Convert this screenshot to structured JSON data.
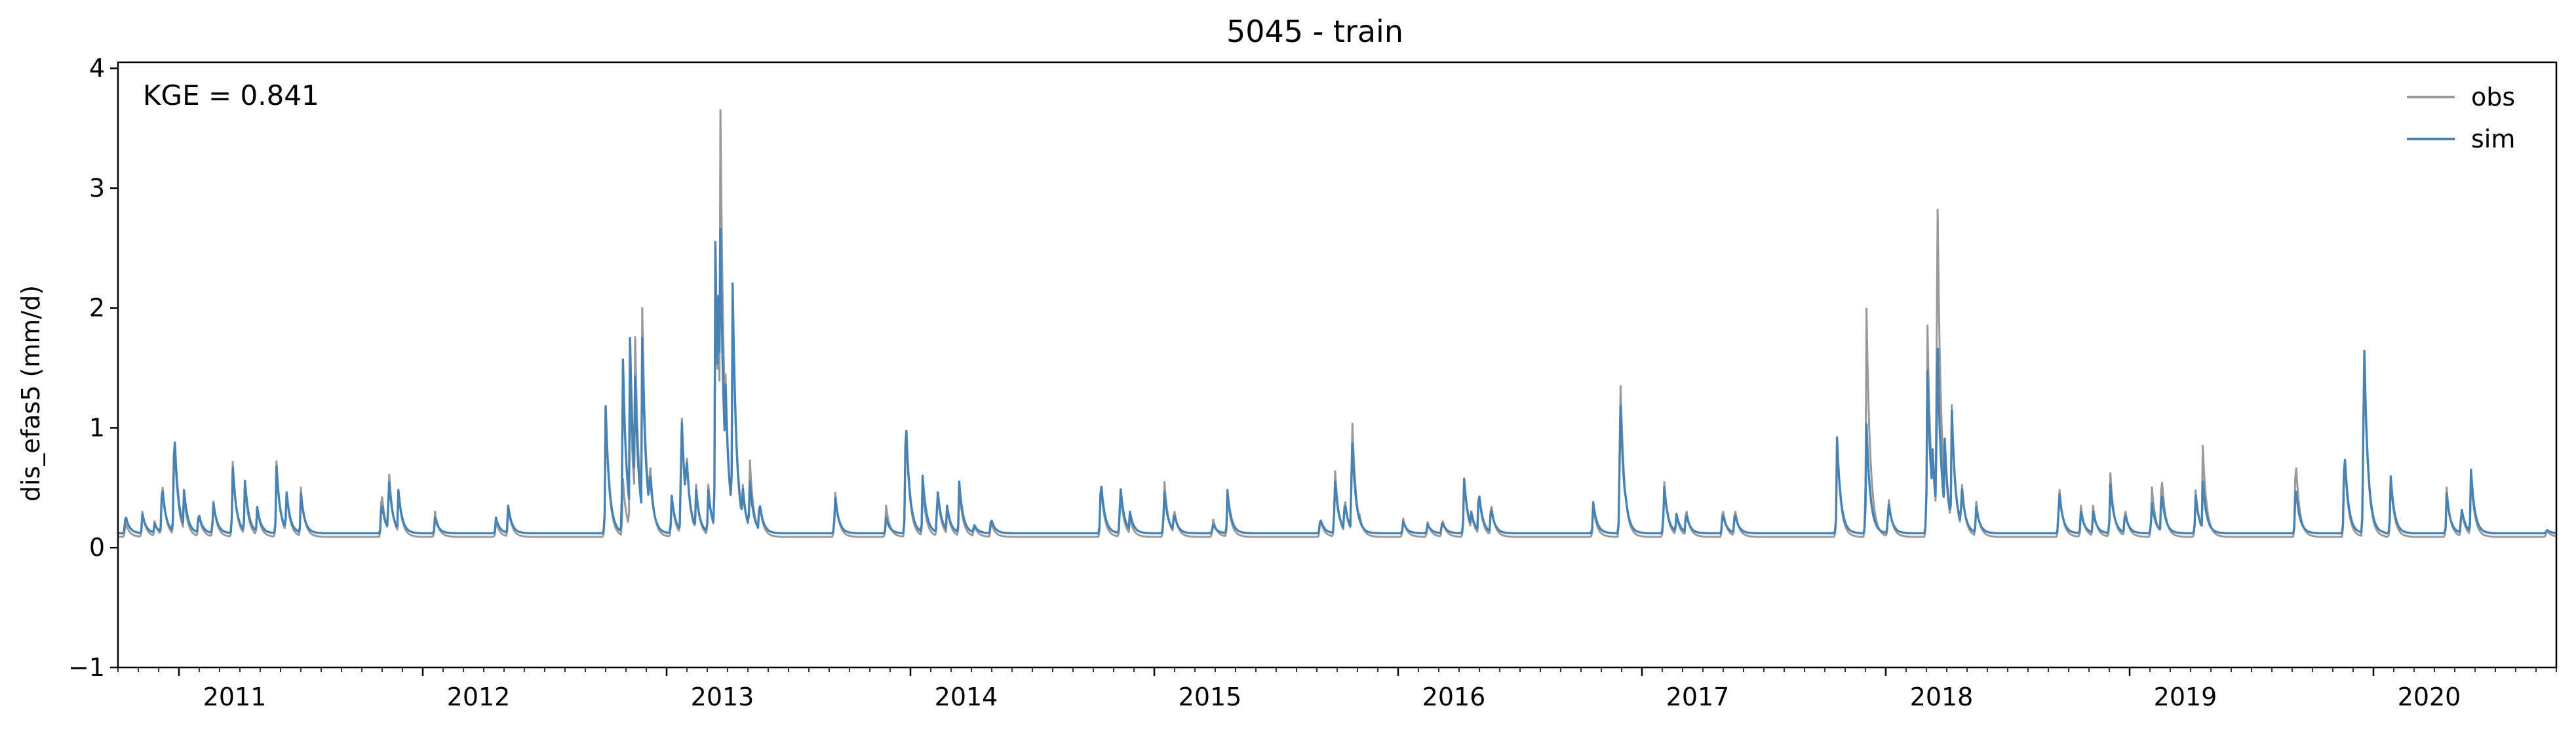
{
  "chart_data": {
    "type": "line",
    "title": "5045 - train",
    "xlabel": "",
    "ylabel": "dis_efas5 (mm/d)",
    "annotation": "KGE = 0.841",
    "legend_position": "top-right",
    "grid": false,
    "xlim": [
      2010.75,
      2020.75
    ],
    "ylim": [
      -1,
      4.05
    ],
    "y_ticks": [
      -1,
      0,
      1,
      2,
      3,
      4
    ],
    "y_tick_labels": [
      "−1",
      "0",
      "1",
      "2",
      "3",
      "4"
    ],
    "x_ticks": [
      2011,
      2012,
      2013,
      2014,
      2015,
      2016,
      2017,
      2018,
      2019,
      2020
    ],
    "x_tick_labels": [
      "2011",
      "2012",
      "2013",
      "2014",
      "2015",
      "2016",
      "2017",
      "2018",
      "2019",
      "2020"
    ],
    "baseline": {
      "obs": 0.09,
      "sim": 0.12
    },
    "peak_width_years": 0.011,
    "series": [
      {
        "name": "obs",
        "color": "#999999",
        "peaks": [
          [
            2010.78,
            0.22
          ],
          [
            2010.85,
            0.3
          ],
          [
            2010.9,
            0.22
          ],
          [
            2010.93,
            0.6
          ],
          [
            2010.98,
            1.0
          ],
          [
            2011.02,
            0.45
          ],
          [
            2011.08,
            0.3
          ],
          [
            2011.14,
            0.42
          ],
          [
            2011.22,
            0.75
          ],
          [
            2011.27,
            0.55
          ],
          [
            2011.32,
            0.35
          ],
          [
            2011.4,
            0.72
          ],
          [
            2011.44,
            0.5
          ],
          [
            2011.5,
            0.5
          ],
          [
            2011.83,
            0.5
          ],
          [
            2011.86,
            0.7
          ],
          [
            2011.9,
            0.48
          ],
          [
            2012.05,
            0.3
          ],
          [
            2012.3,
            0.22
          ],
          [
            2012.35,
            0.35
          ],
          [
            2012.75,
            1.15
          ],
          [
            2012.82,
            0.6
          ],
          [
            2012.85,
            1.4
          ],
          [
            2012.87,
            1.85
          ],
          [
            2012.9,
            2.0
          ],
          [
            2012.93,
            0.8
          ],
          [
            2013.02,
            0.45
          ],
          [
            2013.06,
            1.25
          ],
          [
            2013.08,
            0.9
          ],
          [
            2013.12,
            0.55
          ],
          [
            2013.17,
            0.55
          ],
          [
            2013.2,
            2.5
          ],
          [
            2013.21,
            2.1
          ],
          [
            2013.22,
            3.85
          ],
          [
            2013.24,
            1.6
          ],
          [
            2013.27,
            2.3
          ],
          [
            2013.31,
            0.6
          ],
          [
            2013.34,
            0.8
          ],
          [
            2013.38,
            0.4
          ],
          [
            2013.69,
            0.5
          ],
          [
            2013.9,
            0.35
          ],
          [
            2013.98,
            1.15
          ],
          [
            2014.05,
            0.5
          ],
          [
            2014.11,
            0.5
          ],
          [
            2014.15,
            0.35
          ],
          [
            2014.2,
            0.5
          ],
          [
            2014.26,
            0.2
          ],
          [
            2014.33,
            0.22
          ],
          [
            2014.78,
            0.55
          ],
          [
            2014.86,
            0.5
          ],
          [
            2014.9,
            0.25
          ],
          [
            2015.04,
            0.6
          ],
          [
            2015.08,
            0.35
          ],
          [
            2015.3,
            0.45
          ],
          [
            2015.24,
            0.25
          ],
          [
            2015.68,
            0.25
          ],
          [
            2015.74,
            0.7
          ],
          [
            2015.78,
            0.45
          ],
          [
            2015.81,
            1.2
          ],
          [
            2015.84,
            0.3
          ],
          [
            2016.02,
            0.25
          ],
          [
            2016.12,
            0.22
          ],
          [
            2016.18,
            0.25
          ],
          [
            2016.27,
            0.6
          ],
          [
            2016.3,
            0.3
          ],
          [
            2016.33,
            0.5
          ],
          [
            2016.38,
            0.4
          ],
          [
            2016.8,
            0.35
          ],
          [
            2016.91,
            1.57
          ],
          [
            2016.93,
            0.5
          ],
          [
            2017.09,
            0.6
          ],
          [
            2017.14,
            0.3
          ],
          [
            2017.18,
            0.35
          ],
          [
            2017.33,
            0.35
          ],
          [
            2017.38,
            0.35
          ],
          [
            2017.8,
            0.9
          ],
          [
            2017.92,
            2.1
          ],
          [
            2018.01,
            0.45
          ],
          [
            2018.17,
            1.95
          ],
          [
            2018.19,
            0.85
          ],
          [
            2018.21,
            3.3
          ],
          [
            2018.24,
            0.95
          ],
          [
            2018.27,
            1.25
          ],
          [
            2018.31,
            0.6
          ],
          [
            2018.37,
            0.4
          ],
          [
            2018.71,
            0.55
          ],
          [
            2018.8,
            0.35
          ],
          [
            2018.85,
            0.35
          ],
          [
            2018.92,
            0.65
          ],
          [
            2018.98,
            0.35
          ],
          [
            2019.09,
            0.55
          ],
          [
            2019.13,
            0.65
          ],
          [
            2019.27,
            0.5
          ],
          [
            2019.3,
            0.85
          ],
          [
            2019.68,
            0.8
          ],
          [
            2019.88,
            0.85
          ],
          [
            2019.96,
            1.88
          ],
          [
            2020.07,
            0.6
          ],
          [
            2020.3,
            0.5
          ],
          [
            2020.36,
            0.35
          ],
          [
            2020.4,
            0.6
          ],
          [
            2020.71,
            0.15
          ]
        ]
      },
      {
        "name": "sim",
        "color": "#4682b4",
        "peaks": [
          [
            2010.78,
            0.28
          ],
          [
            2010.85,
            0.28
          ],
          [
            2010.9,
            0.2
          ],
          [
            2010.93,
            0.55
          ],
          [
            2010.98,
            1.06
          ],
          [
            2011.02,
            0.5
          ],
          [
            2011.08,
            0.3
          ],
          [
            2011.14,
            0.4
          ],
          [
            2011.22,
            0.7
          ],
          [
            2011.27,
            0.58
          ],
          [
            2011.32,
            0.35
          ],
          [
            2011.4,
            0.68
          ],
          [
            2011.44,
            0.5
          ],
          [
            2011.5,
            0.45
          ],
          [
            2011.83,
            0.4
          ],
          [
            2011.86,
            0.62
          ],
          [
            2011.9,
            0.48
          ],
          [
            2012.05,
            0.25
          ],
          [
            2012.3,
            0.25
          ],
          [
            2012.35,
            0.35
          ],
          [
            2012.75,
            1.18
          ],
          [
            2012.82,
            1.65
          ],
          [
            2012.85,
            1.75
          ],
          [
            2012.87,
            1.5
          ],
          [
            2012.9,
            1.75
          ],
          [
            2012.93,
            0.7
          ],
          [
            2013.02,
            0.45
          ],
          [
            2013.06,
            1.2
          ],
          [
            2013.08,
            0.85
          ],
          [
            2013.12,
            0.5
          ],
          [
            2013.17,
            0.5
          ],
          [
            2013.2,
            2.55
          ],
          [
            2013.21,
            2.45
          ],
          [
            2013.22,
            2.8
          ],
          [
            2013.24,
            1.5
          ],
          [
            2013.27,
            2.32
          ],
          [
            2013.31,
            0.55
          ],
          [
            2013.34,
            0.6
          ],
          [
            2013.38,
            0.4
          ],
          [
            2013.69,
            0.45
          ],
          [
            2013.9,
            0.25
          ],
          [
            2013.98,
            1.18
          ],
          [
            2014.05,
            0.6
          ],
          [
            2014.11,
            0.52
          ],
          [
            2014.15,
            0.35
          ],
          [
            2014.2,
            0.55
          ],
          [
            2014.26,
            0.2
          ],
          [
            2014.33,
            0.25
          ],
          [
            2014.78,
            0.6
          ],
          [
            2014.86,
            0.55
          ],
          [
            2014.9,
            0.3
          ],
          [
            2015.04,
            0.5
          ],
          [
            2015.08,
            0.3
          ],
          [
            2015.3,
            0.48
          ],
          [
            2015.24,
            0.2
          ],
          [
            2015.68,
            0.25
          ],
          [
            2015.74,
            0.6
          ],
          [
            2015.78,
            0.4
          ],
          [
            2015.81,
            1.0
          ],
          [
            2015.84,
            0.25
          ],
          [
            2016.02,
            0.22
          ],
          [
            2016.12,
            0.2
          ],
          [
            2016.18,
            0.22
          ],
          [
            2016.27,
            0.6
          ],
          [
            2016.3,
            0.3
          ],
          [
            2016.33,
            0.5
          ],
          [
            2016.38,
            0.35
          ],
          [
            2016.8,
            0.38
          ],
          [
            2016.91,
            1.37
          ],
          [
            2016.93,
            0.5
          ],
          [
            2017.09,
            0.55
          ],
          [
            2017.14,
            0.3
          ],
          [
            2017.18,
            0.3
          ],
          [
            2017.33,
            0.3
          ],
          [
            2017.38,
            0.3
          ],
          [
            2017.8,
            0.92
          ],
          [
            2017.92,
            1.08
          ],
          [
            2018.01,
            0.4
          ],
          [
            2018.17,
            1.55
          ],
          [
            2018.19,
            0.9
          ],
          [
            2018.21,
            1.93
          ],
          [
            2018.24,
            1.0
          ],
          [
            2018.27,
            1.2
          ],
          [
            2018.31,
            0.55
          ],
          [
            2018.37,
            0.35
          ],
          [
            2018.71,
            0.5
          ],
          [
            2018.8,
            0.3
          ],
          [
            2018.85,
            0.3
          ],
          [
            2018.92,
            0.55
          ],
          [
            2018.98,
            0.3
          ],
          [
            2019.09,
            0.4
          ],
          [
            2019.13,
            0.5
          ],
          [
            2019.27,
            0.45
          ],
          [
            2019.3,
            0.55
          ],
          [
            2019.68,
            0.55
          ],
          [
            2019.88,
            0.88
          ],
          [
            2019.96,
            1.91
          ],
          [
            2020.07,
            0.62
          ],
          [
            2020.3,
            0.45
          ],
          [
            2020.36,
            0.35
          ],
          [
            2020.4,
            0.65
          ],
          [
            2020.71,
            0.15
          ]
        ]
      }
    ]
  }
}
